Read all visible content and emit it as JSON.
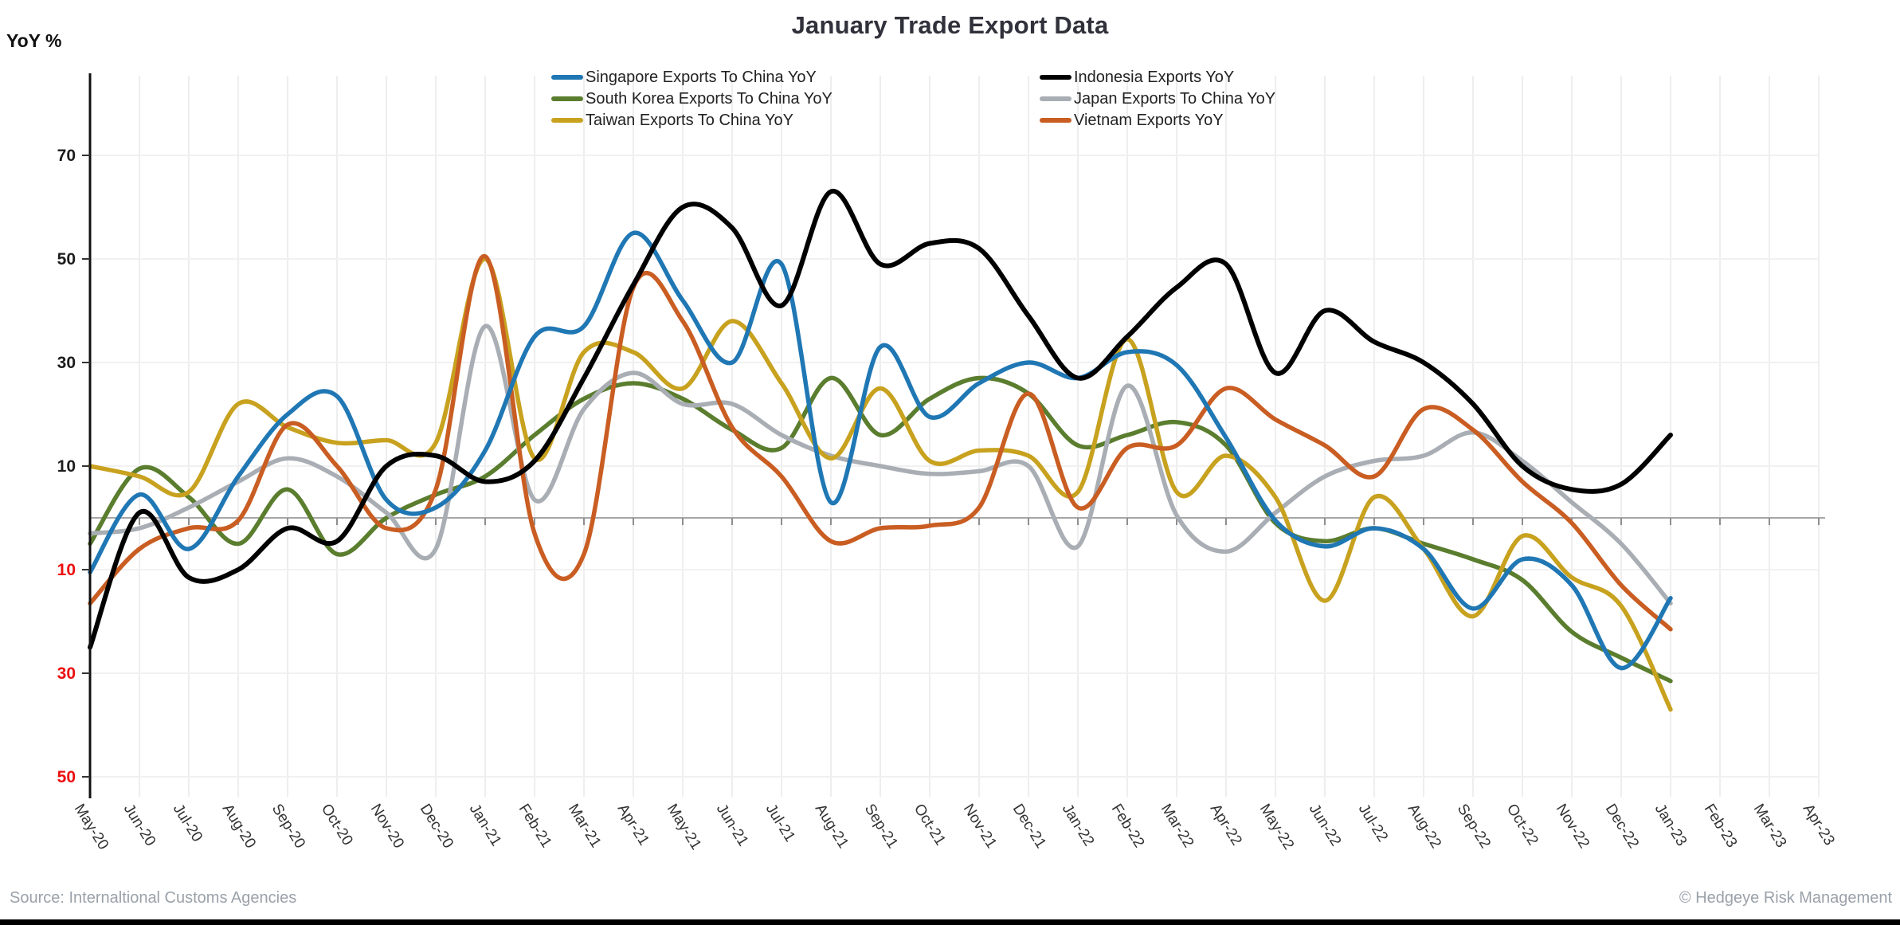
{
  "header": {
    "title": "January Trade Export Data",
    "y_axis_title": "YoY %"
  },
  "legend": {
    "items": [
      {
        "label": "Singapore Exports To China YoY",
        "series": "singapore-exports-to-china",
        "color": "#1f77b4"
      },
      {
        "label": "Indonesia Exports YoY",
        "series": "indonesia-exports",
        "color": "#000000"
      },
      {
        "label": "South Korea Exports To China YoY",
        "series": "south-korea-exports-to-china",
        "color": "#5a7d2e"
      },
      {
        "label": "Japan Exports To China YoY",
        "series": "japan-exports-to-china",
        "color": "#a9aeb4"
      },
      {
        "label": "Taiwan Exports To China YoY",
        "series": "taiwan-exports-to-china",
        "color": "#c8a21f"
      },
      {
        "label": "Vietnam Exports YoY",
        "series": "vietnam-exports",
        "color": "#c95d22"
      }
    ]
  },
  "footer": {
    "source": "Source: Internaltional Customs Agencies",
    "copyright": "© Hedgeye Risk Management"
  },
  "chart_data": {
    "type": "line",
    "title": "January Trade Export Data",
    "ylabel": "YoY %",
    "ylim": [
      -55,
      85
    ],
    "grid": {
      "vertical": true,
      "horizontal": true,
      "gridline_color": "#eeeeee",
      "zero_line_color": "#a6a6a6"
    },
    "legend_position": "top",
    "x_labels": [
      "May-20",
      "Jun-20",
      "Jul-20",
      "Aug-20",
      "Sep-20",
      "Oct-20",
      "Nov-20",
      "Dec-20",
      "Jan-21",
      "Feb-21",
      "Mar-21",
      "Apr-21",
      "May-21",
      "Jun-21",
      "Jul-21",
      "Aug-21",
      "Sep-21",
      "Oct-21",
      "Nov-21",
      "Dec-21",
      "Jan-22",
      "Feb-22",
      "Mar-22",
      "Apr-22",
      "May-22",
      "Jun-22",
      "Jul-22",
      "Aug-22",
      "Sep-22",
      "Oct-22",
      "Nov-22",
      "Dec-22",
      "Jan-23",
      "Feb-23",
      "Mar-23",
      "Apr-23"
    ],
    "data_start_label": "May-20",
    "data_end_label": "Jan-23",
    "y_axis": {
      "tick_font_color_positive": "#1c1c1c",
      "tick_font_color_negative": "#ec0e0e",
      "ticks": [
        {
          "value": 70,
          "label": "70"
        },
        {
          "value": 50,
          "label": "50"
        },
        {
          "value": 30,
          "label": "30"
        },
        {
          "value": 10,
          "label": "10"
        },
        {
          "value": -10,
          "label": "10"
        },
        {
          "value": -30,
          "label": "30"
        },
        {
          "value": -50,
          "label": "50"
        }
      ]
    },
    "series": [
      {
        "name": "South Korea Exports To China YoY",
        "key": "south-korea-exports-to-china",
        "color": "#5a7d2e",
        "values": [
          -5,
          9.5,
          4,
          -5,
          5.5,
          -7,
          0,
          4.5,
          8,
          16,
          23,
          26,
          23,
          17,
          13.5,
          27,
          16,
          23,
          27,
          24,
          14,
          16,
          18.5,
          14,
          -1,
          -4.5,
          -2,
          -5,
          -8,
          -12,
          -22,
          -27,
          -31.5
        ]
      },
      {
        "name": "Japan Exports To China YoY",
        "key": "japan-exports-to-china",
        "color": "#a9aeb4",
        "values": [
          -3,
          -2,
          2,
          7,
          11.5,
          8,
          1,
          -6,
          37,
          3.5,
          21,
          28,
          22,
          22,
          16,
          12,
          10,
          8.5,
          9,
          10,
          -5.5,
          25.5,
          0.5,
          -6.5,
          1,
          8,
          11,
          12,
          16.5,
          11,
          3,
          -5,
          -16.5
        ]
      },
      {
        "name": "Taiwan Exports To China YoY",
        "key": "taiwan-exports-to-china",
        "color": "#c8a21f",
        "values": [
          10,
          8,
          5,
          22,
          17.5,
          14.5,
          15,
          14.5,
          50,
          11.5,
          32,
          32,
          25,
          38,
          26,
          11.5,
          25,
          11,
          13,
          12,
          5,
          34.5,
          5,
          12,
          4,
          -16,
          4,
          -6,
          -19,
          -3.5,
          -11.5,
          -17,
          -37
        ]
      },
      {
        "name": "Vietnam Exports YoY",
        "key": "vietnam-exports",
        "color": "#c95d22",
        "values": [
          -16.5,
          -6,
          -2,
          -0.5,
          18,
          10,
          -2,
          5.5,
          50.5,
          -3,
          -7,
          44.5,
          38,
          17.5,
          8,
          -4.5,
          -2,
          -1.5,
          2,
          24,
          2,
          13.5,
          14,
          25,
          19,
          14,
          8,
          21,
          17,
          7,
          -1,
          -13,
          -21.5
        ]
      },
      {
        "name": "Singapore Exports To China YoY",
        "key": "singapore-exports-to-china",
        "color": "#1f77b4",
        "values": [
          -10.5,
          4.5,
          -6,
          8,
          20,
          23.5,
          3.5,
          2,
          13,
          35,
          37,
          55,
          42,
          30,
          49,
          3,
          33,
          19.5,
          26,
          30,
          27,
          32,
          29.5,
          15.5,
          -0.5,
          -5.5,
          -2,
          -6,
          -17.5,
          -8,
          -13,
          -29,
          -15.5
        ]
      },
      {
        "name": "Indonesia Exports YoY",
        "key": "indonesia-exports",
        "color": "#000000",
        "values": [
          -25,
          1,
          -11.5,
          -10,
          -2,
          -4.5,
          10,
          12,
          7,
          11,
          27,
          45,
          60,
          56,
          41,
          63,
          49,
          53,
          52,
          39,
          27,
          35,
          44.5,
          49,
          28,
          40,
          34,
          30,
          22,
          10,
          5.5,
          6.5,
          16
        ]
      }
    ]
  }
}
